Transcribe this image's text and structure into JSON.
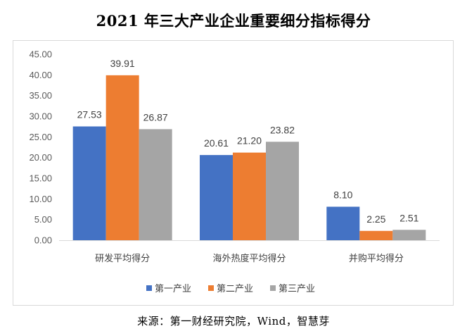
{
  "title": "2021 年三大产业企业重要细分指标得分",
  "source": "来源：第一财经研究院，Wind，智慧芽",
  "colors": {
    "series1": "#4472C4",
    "series2": "#ED7D31",
    "series3": "#A5A5A5"
  },
  "chart_data": {
    "type": "bar",
    "categories": [
      "研发平均得分",
      "海外热度平均得分",
      "并购平均得分"
    ],
    "series": [
      {
        "name": "第一产业",
        "values": [
          27.53,
          20.61,
          8.1
        ]
      },
      {
        "name": "第二产业",
        "values": [
          39.91,
          21.2,
          2.25
        ]
      },
      {
        "name": "第三产业",
        "values": [
          26.87,
          23.82,
          2.51
        ]
      }
    ],
    "ylim": [
      0,
      45
    ],
    "yticks": [
      "0.00",
      "5.00",
      "10.00",
      "15.00",
      "20.00",
      "25.00",
      "30.00",
      "35.00",
      "40.00",
      "45.00"
    ],
    "value_labels": [
      [
        "27.53",
        "20.61",
        "8.10"
      ],
      [
        "39.91",
        "21.20",
        "2.25"
      ],
      [
        "26.87",
        "23.82",
        "2.51"
      ]
    ],
    "legend_position": "bottom",
    "grid": false
  }
}
